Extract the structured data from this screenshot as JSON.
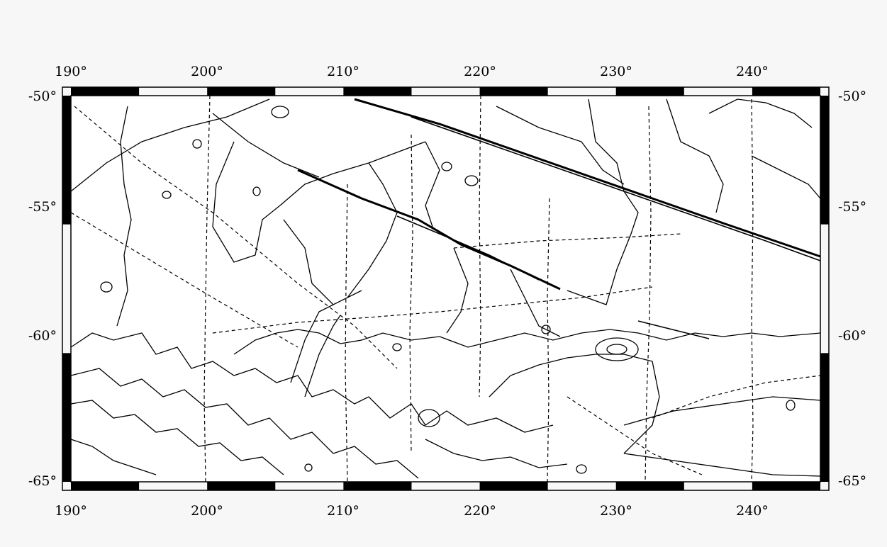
{
  "map": {
    "lon_min": 190,
    "lon_max": 245,
    "lat_min": -65,
    "lat_max": -50,
    "frame_tick_interval_deg": 5,
    "lon_labels_top": [
      "190°",
      "200°",
      "210°",
      "220°",
      "230°",
      "240°"
    ],
    "lon_labels_bottom": [
      "190°",
      "200°",
      "210°",
      "220°",
      "230°",
      "240°"
    ],
    "lat_labels_left": [
      "-50°",
      "-55°",
      "-60°",
      "-65°"
    ],
    "lat_labels_right": [
      "-50°",
      "-55°",
      "-60°",
      "-65°"
    ],
    "background_color": "#f7f7f7",
    "map_area_color": "#ffffff",
    "line_color": "#000000"
  }
}
